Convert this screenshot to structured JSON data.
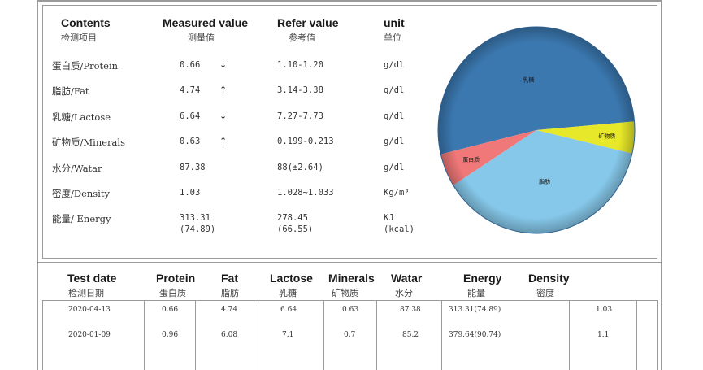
{
  "contents_table": {
    "headers": [
      {
        "en": "Contents",
        "cn": "检测项目"
      },
      {
        "en": "Measured value",
        "cn": "测量值"
      },
      {
        "en": "Refer value",
        "cn": "参考值"
      },
      {
        "en": "unit",
        "cn": "单位"
      }
    ],
    "rows": [
      {
        "item": "蛋白质/Protein",
        "measured": "0.66",
        "arrow": "↓",
        "refer": "1.10-1.20",
        "unit": "g/dl"
      },
      {
        "item": "脂肪/Fat",
        "measured": "4.74",
        "arrow": "↑",
        "refer": "3.14-3.38",
        "unit": "g/dl"
      },
      {
        "item": "乳糖/Lactose",
        "measured": "6.64",
        "arrow": "↓",
        "refer": "7.27-7.73",
        "unit": "g/dl"
      },
      {
        "item": "矿物质/Minerals",
        "measured": "0.63",
        "arrow": "↑",
        "refer": "0.199-0.213",
        "unit": "g/dl"
      },
      {
        "item": "水分/Watar",
        "measured": "87.38",
        "arrow": "",
        "refer": "88(±2.64)",
        "unit": "g/dl"
      },
      {
        "item": "密度/Density",
        "measured": "1.03",
        "arrow": "",
        "refer": "1.028~1.033",
        "unit": "Kg/m³"
      },
      {
        "item": "能量/ Energy",
        "measured": "313.31",
        "measured2": "(74.89)",
        "arrow": "",
        "refer": "278.45",
        "refer2": "(66.55)",
        "unit": "KJ",
        "unit2": "(kcal)"
      }
    ]
  },
  "chart_data": {
    "type": "pie",
    "title": "",
    "slices": [
      {
        "label": "乳糖",
        "value": 6.64,
        "color": "#3b78b0"
      },
      {
        "label": "矿物质",
        "value": 0.63,
        "color": "#e8e82a"
      },
      {
        "label": "脂肪",
        "value": 4.74,
        "color": "#86c8ea"
      },
      {
        "label": "蛋白质",
        "value": 0.66,
        "color": "#f07878"
      }
    ]
  },
  "history_table": {
    "headers": [
      {
        "en": "Test date",
        "cn": "检测日期"
      },
      {
        "en": "Protein",
        "cn": "蛋白质"
      },
      {
        "en": "Fat",
        "cn": "脂肪"
      },
      {
        "en": "Lactose",
        "cn": "乳糖"
      },
      {
        "en": "Minerals",
        "cn": "矿物质"
      },
      {
        "en": "Watar",
        "cn": "水分"
      },
      {
        "en": "Energy",
        "cn": "能量"
      },
      {
        "en": "Density",
        "cn": "密度"
      }
    ],
    "rows": [
      {
        "date": "2020-04-13",
        "protein": "0.66",
        "fat": "4.74",
        "lactose": "6.64",
        "minerals": "0.63",
        "watar": "87.38",
        "energy": "313.31(74.89)",
        "density": "1.03"
      },
      {
        "date": "2020-01-09",
        "protein": "0.96",
        "fat": "6.08",
        "lactose": "7.1",
        "minerals": "0.7",
        "watar": "85.2",
        "energy": "379.64(90.74)",
        "density": "1.1"
      }
    ]
  }
}
